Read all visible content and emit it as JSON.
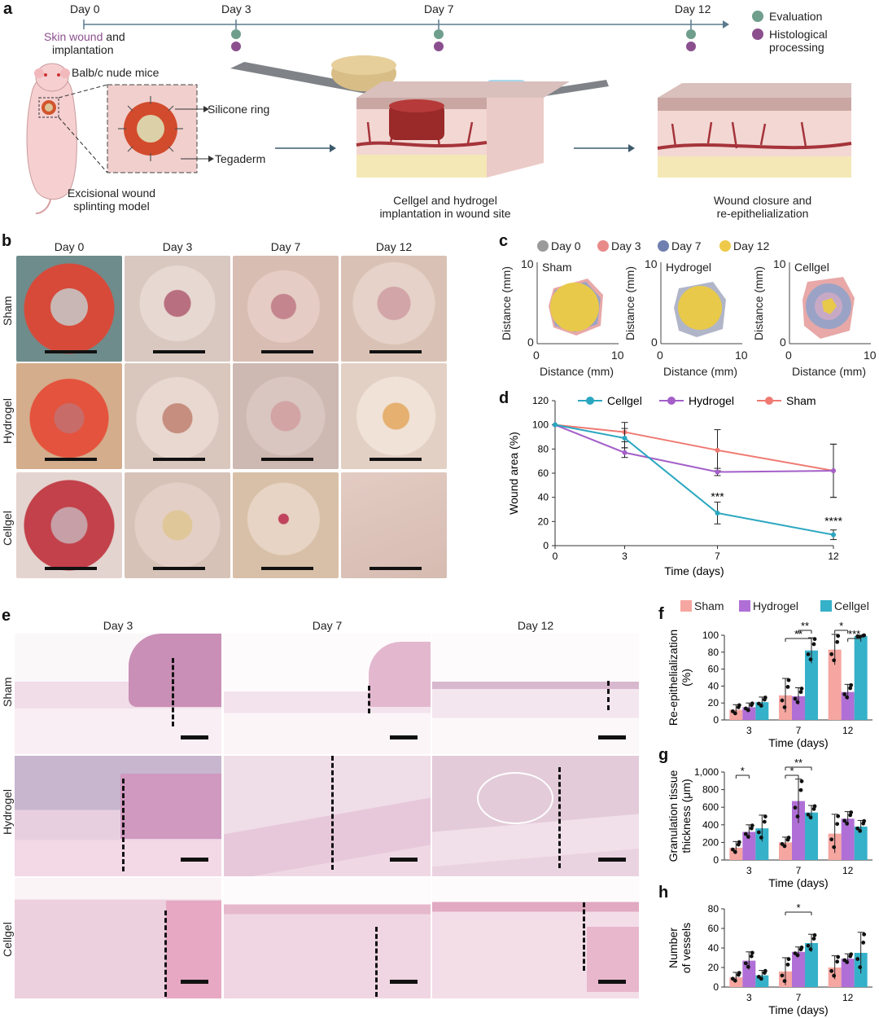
{
  "panel_labels": {
    "a": "a",
    "b": "b",
    "c": "c",
    "d": "d",
    "e": "e",
    "f": "f",
    "g": "g",
    "h": "h"
  },
  "panel_a": {
    "timeline": [
      "Day 0",
      "Day 3",
      "Day 7",
      "Day 12"
    ],
    "skin_wound": "Skin wound",
    "and_text": " and",
    "implantation": "implantation",
    "legend_evaluation": "Evaluation",
    "legend_histology_1": "Histological",
    "legend_histology_2": "processing",
    "mice_label": "Balb/c nude mice",
    "silicone_ring": "Silicone ring",
    "tegaderm": "Tegaderm",
    "model_1": "Excisional wound",
    "model_2": "splinting model",
    "impl_1": "Cellgel and hydrogel",
    "impl_2": "implantation in wound site",
    "close_1": "Wound closure and",
    "close_2": "re-epithelialization",
    "colors": {
      "evaluation": "#6f9e8c",
      "histology": "#8b4f8e",
      "skin_wound": "#8b4f8e"
    }
  },
  "panel_b": {
    "days": [
      "Day 0",
      "Day 3",
      "Day 7",
      "Day 12"
    ],
    "rows": [
      "Sham",
      "Hydrogel",
      "Cellgel"
    ]
  },
  "panel_c": {
    "legend": [
      "Day 0",
      "Day 3",
      "Day 7",
      "Day 12"
    ],
    "legend_colors": [
      "#9a9a9a",
      "#e88a8a",
      "#6f7fb0",
      "#eec94a"
    ],
    "plots": [
      "Sham",
      "Hydrogel",
      "Cellgel"
    ],
    "xlabel": "Distance (mm)",
    "ylabel": "Distance (mm)",
    "ticks": [
      "0",
      "10"
    ]
  },
  "chart_data": [
    {
      "id": "d",
      "type": "line",
      "x": [
        0,
        3,
        7,
        12
      ],
      "series": [
        {
          "name": "Cellgel",
          "color": "#2aa7c0",
          "values": [
            100,
            89,
            27,
            9
          ],
          "errors": [
            0,
            8,
            9,
            4
          ]
        },
        {
          "name": "Hydrogel",
          "color": "#a45fc9",
          "values": [
            100,
            77,
            61,
            62
          ],
          "errors": [
            0,
            4,
            3,
            22
          ]
        },
        {
          "name": "Sham",
          "color": "#ef7a72",
          "values": [
            100,
            94,
            79,
            62
          ],
          "errors": [
            0,
            8,
            17,
            22
          ]
        }
      ],
      "annotations": [
        {
          "x": 7,
          "y": 40,
          "text": "***"
        },
        {
          "x": 12,
          "y": 20,
          "text": "****"
        }
      ],
      "xlabel": "Time (days)",
      "ylabel": "Wound area (%)",
      "ylim": [
        0,
        120
      ],
      "yticks": [
        "0",
        "20",
        "40",
        "60",
        "80",
        "100",
        "120"
      ],
      "xticks": [
        "0",
        "3",
        "7",
        "12"
      ]
    },
    {
      "id": "f",
      "type": "bar",
      "categories": [
        "3",
        "7",
        "12"
      ],
      "series": [
        {
          "name": "Sham",
          "color": "#f6a6a0",
          "values": [
            12,
            29,
            83
          ],
          "errors": [
            6,
            20,
            18
          ]
        },
        {
          "name": "Hydrogel",
          "color": "#b06fd6",
          "values": [
            15,
            28,
            33
          ],
          "errors": [
            5,
            10,
            9
          ]
        },
        {
          "name": "Cellgel",
          "color": "#35b1c9",
          "values": [
            21,
            82,
            99
          ],
          "errors": [
            6,
            15,
            1
          ]
        }
      ],
      "sig": [
        {
          "cat": 1,
          "from": 0,
          "to": 2,
          "text": "**",
          "level": 0
        },
        {
          "cat": 1,
          "from": 1,
          "to": 2,
          "text": "**",
          "level": 1
        },
        {
          "cat": 2,
          "from": 0,
          "to": 1,
          "text": "*",
          "level": 1
        },
        {
          "cat": 2,
          "from": 1,
          "to": 2,
          "text": "***",
          "level": 0
        }
      ],
      "ylabel_1": "Re-epithelialization",
      "ylabel_2": "(%)",
      "xlabel": "Time (days)",
      "ylim": [
        0,
        100
      ],
      "yticks": [
        "0",
        "20",
        "40",
        "60",
        "80",
        "100"
      ]
    },
    {
      "id": "g",
      "type": "bar",
      "categories": [
        "3",
        "7",
        "12"
      ],
      "series": [
        {
          "name": "Sham",
          "color": "#f6a6a0",
          "values": [
            140,
            200,
            300
          ],
          "errors": [
            70,
            60,
            220
          ]
        },
        {
          "name": "Hydrogel",
          "color": "#b06fd6",
          "values": [
            320,
            670,
            470
          ],
          "errors": [
            80,
            250,
            80
          ]
        },
        {
          "name": "Cellgel",
          "color": "#35b1c9",
          "values": [
            360,
            540,
            380
          ],
          "errors": [
            150,
            80,
            70
          ]
        }
      ],
      "sig": [
        {
          "cat": 0,
          "from": 0,
          "to": 1,
          "text": "*",
          "level": 0
        },
        {
          "cat": 1,
          "from": 0,
          "to": 1,
          "text": "*",
          "level": 0
        },
        {
          "cat": 1,
          "from": 0,
          "to": 2,
          "text": "**",
          "level": 1
        }
      ],
      "ylabel_1": "Granulation tissue",
      "ylabel_2": "thickness (μm)",
      "xlabel": "Time (days)",
      "ylim": [
        0,
        1000
      ],
      "yticks": [
        "0",
        "200",
        "400",
        "600",
        "800",
        "1,000"
      ]
    },
    {
      "id": "h",
      "type": "bar",
      "categories": [
        "3",
        "7",
        "12"
      ],
      "series": [
        {
          "name": "Sham",
          "color": "#f6a6a0",
          "values": [
            10,
            16,
            20
          ],
          "errors": [
            5,
            14,
            12
          ]
        },
        {
          "name": "Hydrogel",
          "color": "#b06fd6",
          "values": [
            27,
            36,
            29
          ],
          "errors": [
            9,
            5,
            5
          ]
        },
        {
          "name": "Cellgel",
          "color": "#35b1c9",
          "values": [
            12,
            45,
            35
          ],
          "errors": [
            5,
            9,
            21
          ]
        }
      ],
      "sig": [
        {
          "cat": 1,
          "from": 0,
          "to": 2,
          "text": "*",
          "level": 0
        }
      ],
      "ylabel_1": "Number",
      "ylabel_2": "of vessels",
      "xlabel": "Time (days)",
      "ylim": [
        0,
        80
      ],
      "yticks": [
        "0",
        "20",
        "40",
        "60",
        "80"
      ]
    }
  ],
  "panel_e": {
    "days": [
      "Day 3",
      "Day 7",
      "Day 12"
    ],
    "rows": [
      "Sham",
      "Hydrogel",
      "Cellgel"
    ]
  },
  "legend_fgh": [
    "Sham",
    "Hydrogel",
    "Cellgel"
  ]
}
